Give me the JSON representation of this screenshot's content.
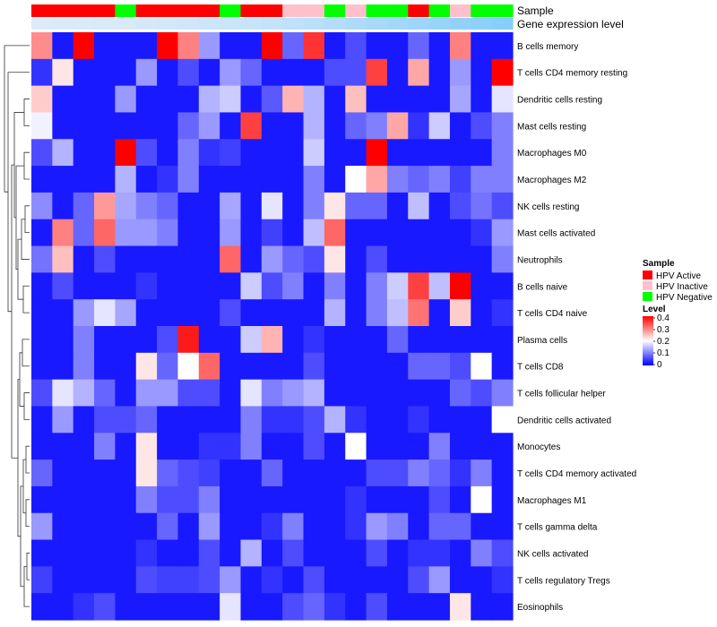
{
  "chart_data": {
    "type": "heatmap",
    "title": "",
    "annotation_labels": {
      "sample": "Sample",
      "gene": "Gene expression level"
    },
    "legend": {
      "sample_title": "Sample",
      "sample_groups": [
        {
          "name": "HPV Active",
          "color": "#ff0000"
        },
        {
          "name": "HPV Inactive",
          "color": "#ffc0cb"
        },
        {
          "name": "HPV Negative",
          "color": "#00ff00"
        }
      ],
      "level_title": "Level",
      "level_ticks": [
        "0.4",
        "0.3",
        "0.2",
        "0.1",
        "0"
      ],
      "placement": "right"
    },
    "colorscale": {
      "min": 0,
      "max": 0.4,
      "low": "#0000ff",
      "mid": "#ffffff",
      "high": "#ff0000"
    },
    "sample_groups_per_column": [
      "HPV Active",
      "HPV Active",
      "HPV Active",
      "HPV Active",
      "HPV Negative",
      "HPV Active",
      "HPV Active",
      "HPV Active",
      "HPV Active",
      "HPV Negative",
      "HPV Active",
      "HPV Active",
      "HPV Inactive",
      "HPV Inactive",
      "HPV Negative",
      "HPV Inactive",
      "HPV Negative",
      "HPV Negative",
      "HPV Active",
      "HPV Negative",
      "HPV Inactive",
      "HPV Negative",
      "HPV Negative"
    ],
    "gene_level_per_column": [
      0.05,
      0.06,
      0.06,
      0.07,
      0.07,
      0.08,
      0.09,
      0.1,
      0.11,
      0.12,
      0.13,
      0.14,
      0.16,
      0.18,
      0.2,
      0.22,
      0.24,
      0.26,
      0.28,
      0.3,
      0.32,
      0.34,
      0.36
    ],
    "rows": [
      "B cells memory",
      "T cells CD4 memory resting",
      "Dendritic cells resting",
      "Mast cells resting",
      "Macrophages M0",
      "Macrophages M2",
      "NK cells resting",
      "Mast cells activated",
      "Neutrophils",
      "B cells naive",
      "T cells CD4 naive",
      "Plasma cells",
      "T cells CD8",
      "T cells follicular helper",
      "Dendritic cells activated",
      "Monocytes",
      "T cells CD4 memory activated",
      "Macrophages M1",
      "T cells gamma delta",
      "NK cells activated",
      "T cells regulatory  Tregs",
      "Eosinophils"
    ],
    "values": [
      [
        0.29,
        0.02,
        0.4,
        0.02,
        0.02,
        0.02,
        0.4,
        0.3,
        0.12,
        0.02,
        0.02,
        0.4,
        0.08,
        0.36,
        0.02,
        0.06,
        0.02,
        0.02,
        0.08,
        0.02,
        0.3,
        0.02,
        0.02
      ],
      [
        0.04,
        0.22,
        0.02,
        0.02,
        0.02,
        0.12,
        0.02,
        0.06,
        0.02,
        0.12,
        0.08,
        0.02,
        0.02,
        0.02,
        0.06,
        0.06,
        0.35,
        0.02,
        0.27,
        0.02,
        0.12,
        0.02,
        0.4
      ],
      [
        0.24,
        0.02,
        0.02,
        0.02,
        0.12,
        0.02,
        0.02,
        0.02,
        0.14,
        0.16,
        0.02,
        0.07,
        0.26,
        0.14,
        0.02,
        0.25,
        0.02,
        0.02,
        0.02,
        0.02,
        0.13,
        0.02,
        0.18
      ],
      [
        0.19,
        0.02,
        0.02,
        0.02,
        0.02,
        0.02,
        0.02,
        0.08,
        0.12,
        0.02,
        0.35,
        0.02,
        0.02,
        0.14,
        0.02,
        0.08,
        0.1,
        0.27,
        0.04,
        0.16,
        0.02,
        0.06,
        0.1
      ],
      [
        0.06,
        0.14,
        0.02,
        0.02,
        0.4,
        0.06,
        0.02,
        0.1,
        0.04,
        0.05,
        0.02,
        0.02,
        0.02,
        0.16,
        0.02,
        0.02,
        0.4,
        0.02,
        0.02,
        0.02,
        0.02,
        0.02,
        0.1
      ],
      [
        0.02,
        0.02,
        0.02,
        0.02,
        0.14,
        0.02,
        0.04,
        0.1,
        0.02,
        0.02,
        0.02,
        0.02,
        0.02,
        0.1,
        0.02,
        0.2,
        0.27,
        0.1,
        0.08,
        0.1,
        0.05,
        0.1,
        0.1
      ],
      [
        0.11,
        0.02,
        0.08,
        0.28,
        0.13,
        0.1,
        0.08,
        0.02,
        0.02,
        0.13,
        0.02,
        0.18,
        0.02,
        0.1,
        0.22,
        0.08,
        0.08,
        0.02,
        0.15,
        0.02,
        0.06,
        0.09,
        0.06
      ],
      [
        0.02,
        0.3,
        0.08,
        0.32,
        0.12,
        0.12,
        0.1,
        0.02,
        0.02,
        0.12,
        0.02,
        0.05,
        0.02,
        0.15,
        0.32,
        0.02,
        0.02,
        0.02,
        0.02,
        0.02,
        0.02,
        0.04,
        0.12
      ],
      [
        0.09,
        0.25,
        0.02,
        0.06,
        0.02,
        0.02,
        0.02,
        0.02,
        0.02,
        0.32,
        0.02,
        0.12,
        0.08,
        0.06,
        0.22,
        0.02,
        0.06,
        0.02,
        0.02,
        0.02,
        0.02,
        0.02,
        0.1
      ],
      [
        0.02,
        0.06,
        0.02,
        0.02,
        0.02,
        0.04,
        0.02,
        0.02,
        0.02,
        0.02,
        0.16,
        0.06,
        0.1,
        0.02,
        0.1,
        0.02,
        0.1,
        0.16,
        0.35,
        0.15,
        0.4,
        0.02,
        0.02
      ],
      [
        0.02,
        0.02,
        0.12,
        0.18,
        0.13,
        0.02,
        0.02,
        0.02,
        0.02,
        0.06,
        0.02,
        0.02,
        0.02,
        0.02,
        0.14,
        0.02,
        0.1,
        0.15,
        0.31,
        0.02,
        0.24,
        0.02,
        0.04
      ],
      [
        0.02,
        0.02,
        0.1,
        0.02,
        0.02,
        0.02,
        0.06,
        0.38,
        0.02,
        0.02,
        0.16,
        0.26,
        0.02,
        0.04,
        0.02,
        0.02,
        0.02,
        0.08,
        0.02,
        0.02,
        0.02,
        0.02,
        0.02
      ],
      [
        0.02,
        0.02,
        0.1,
        0.02,
        0.02,
        0.22,
        0.08,
        0.2,
        0.32,
        0.02,
        0.02,
        0.02,
        0.02,
        0.06,
        0.02,
        0.02,
        0.02,
        0.02,
        0.08,
        0.08,
        0.06,
        0.2,
        0.02
      ],
      [
        0.06,
        0.18,
        0.14,
        0.08,
        0.02,
        0.12,
        0.12,
        0.06,
        0.06,
        0.02,
        0.18,
        0.1,
        0.12,
        0.14,
        0.02,
        0.02,
        0.02,
        0.02,
        0.02,
        0.02,
        0.08,
        0.06,
        0.1
      ],
      [
        0.02,
        0.12,
        0.02,
        0.06,
        0.06,
        0.08,
        0.02,
        0.02,
        0.02,
        0.02,
        0.1,
        0.04,
        0.04,
        0.06,
        0.14,
        0.04,
        0.02,
        0.02,
        0.04,
        0.02,
        0.02,
        0.02,
        0.2
      ],
      [
        0.02,
        0.02,
        0.02,
        0.1,
        0.02,
        0.22,
        0.02,
        0.02,
        0.04,
        0.04,
        0.1,
        0.02,
        0.02,
        0.06,
        0.02,
        0.2,
        0.02,
        0.02,
        0.02,
        0.1,
        0.02,
        0.02,
        0.02
      ],
      [
        0.08,
        0.02,
        0.02,
        0.02,
        0.02,
        0.22,
        0.08,
        0.06,
        0.05,
        0.02,
        0.02,
        0.08,
        0.02,
        0.02,
        0.02,
        0.02,
        0.06,
        0.06,
        0.1,
        0.08,
        0.04,
        0.1,
        0.02
      ],
      [
        0.02,
        0.02,
        0.02,
        0.02,
        0.02,
        0.1,
        0.06,
        0.06,
        0.1,
        0.02,
        0.02,
        0.02,
        0.02,
        0.02,
        0.02,
        0.04,
        0.02,
        0.02,
        0.02,
        0.06,
        0.02,
        0.2,
        0.02
      ],
      [
        0.12,
        0.02,
        0.02,
        0.02,
        0.02,
        0.02,
        0.08,
        0.02,
        0.12,
        0.02,
        0.02,
        0.04,
        0.1,
        0.02,
        0.02,
        0.04,
        0.12,
        0.1,
        0.02,
        0.08,
        0.08,
        0.02,
        0.02
      ],
      [
        0.02,
        0.02,
        0.02,
        0.02,
        0.02,
        0.04,
        0.02,
        0.02,
        0.06,
        0.02,
        0.14,
        0.02,
        0.06,
        0.02,
        0.02,
        0.02,
        0.06,
        0.02,
        0.04,
        0.04,
        0.02,
        0.1,
        0.06
      ],
      [
        0.05,
        0.02,
        0.02,
        0.02,
        0.02,
        0.06,
        0.05,
        0.05,
        0.06,
        0.12,
        0.02,
        0.04,
        0.02,
        0.06,
        0.02,
        0.02,
        0.02,
        0.02,
        0.06,
        0.12,
        0.02,
        0.02,
        0.04
      ],
      [
        0.02,
        0.02,
        0.04,
        0.06,
        0.02,
        0.02,
        0.02,
        0.02,
        0.02,
        0.18,
        0.02,
        0.02,
        0.06,
        0.08,
        0.04,
        0.02,
        0.06,
        0.02,
        0.02,
        0.02,
        0.22,
        0.02,
        0.02
      ]
    ]
  }
}
